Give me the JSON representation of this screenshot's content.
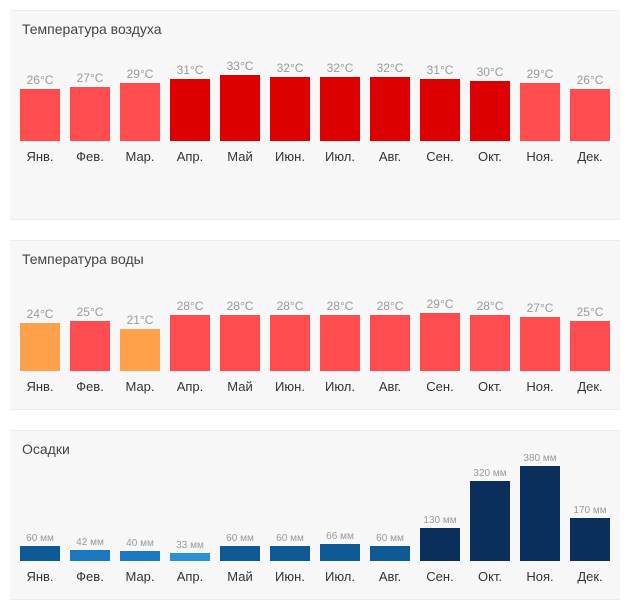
{
  "chart_data": [
    {
      "type": "bar",
      "id": "air",
      "title": "Температура воздуха",
      "categories": [
        "Янв.",
        "Фев.",
        "Мар.",
        "Апр.",
        "Май",
        "Июн.",
        "Июл.",
        "Авг.",
        "Сен.",
        "Окт.",
        "Ноя.",
        "Дек."
      ],
      "values": [
        26,
        27,
        29,
        31,
        33,
        32,
        32,
        32,
        31,
        30,
        29,
        26
      ],
      "value_labels": [
        "26°C",
        "27°C",
        "29°C",
        "31°C",
        "33°C",
        "32°C",
        "32°C",
        "32°C",
        "31°C",
        "30°C",
        "29°C",
        "26°C"
      ],
      "colors": [
        "#ff4d4f",
        "#ff4d4f",
        "#ff4d4f",
        "#dd0000",
        "#dd0000",
        "#dd0000",
        "#dd0000",
        "#dd0000",
        "#dd0000",
        "#dd0000",
        "#ff4d4f",
        "#ff4d4f"
      ],
      "unit": "°C",
      "ylim": [
        0,
        33
      ]
    },
    {
      "type": "bar",
      "id": "water",
      "title": "Температура воды",
      "categories": [
        "Янв.",
        "Фев.",
        "Мар.",
        "Апр.",
        "Май",
        "Июн.",
        "Июл.",
        "Авг.",
        "Сен.",
        "Окт.",
        "Ноя.",
        "Дек."
      ],
      "values": [
        24,
        25,
        21,
        28,
        28,
        28,
        28,
        28,
        29,
        28,
        27,
        25
      ],
      "value_labels": [
        "24°C",
        "25°C",
        "21°C",
        "28°C",
        "28°C",
        "28°C",
        "28°C",
        "28°C",
        "29°C",
        "28°C",
        "27°C",
        "25°C"
      ],
      "colors": [
        "#ffa04a",
        "#ff4d4f",
        "#ffa04a",
        "#ff4d4f",
        "#ff4d4f",
        "#ff4d4f",
        "#ff4d4f",
        "#ff4d4f",
        "#ff4d4f",
        "#ff4d4f",
        "#ff4d4f",
        "#ff4d4f"
      ],
      "unit": "°C",
      "ylim": [
        0,
        29
      ]
    },
    {
      "type": "bar",
      "id": "rain",
      "title": "Осадки",
      "categories": [
        "Янв.",
        "Фев.",
        "Мар.",
        "Апр.",
        "Май",
        "Июн.",
        "Июл.",
        "Авг.",
        "Сен.",
        "Окт.",
        "Ноя.",
        "Дек."
      ],
      "values": [
        60,
        42,
        40,
        33,
        60,
        60,
        66,
        60,
        130,
        320,
        380,
        170
      ],
      "value_labels": [
        "60 мм",
        "42 мм",
        "40 мм",
        "33 мм",
        "60 мм",
        "60 мм",
        "66 мм",
        "60 мм",
        "130 мм",
        "320 мм",
        "380 мм",
        "170 мм"
      ],
      "colors": [
        "#0d5a94",
        "#1a78c2",
        "#1a78c2",
        "#2a8fd6",
        "#0d5a94",
        "#0d5a94",
        "#0d5a94",
        "#0d5a94",
        "#0a2f5c",
        "#0a2f5c",
        "#0a2f5c",
        "#0a2f5c"
      ],
      "unit": "мм",
      "ylim": [
        0,
        380
      ]
    }
  ]
}
